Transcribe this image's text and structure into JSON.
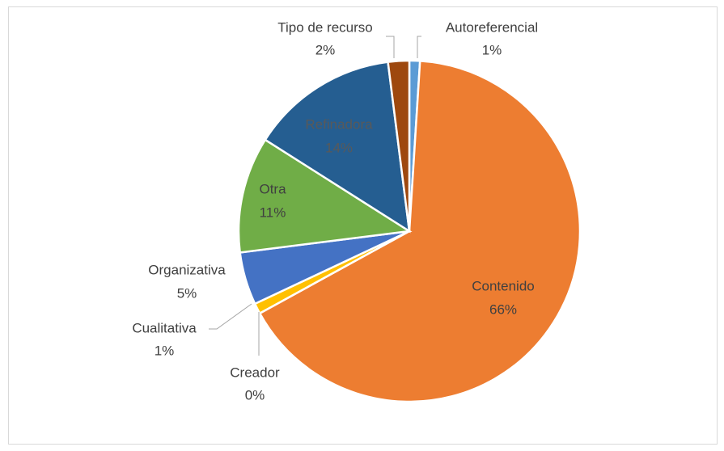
{
  "chart_data": {
    "type": "pie",
    "categories": [
      "Autoreferencial",
      "Contenido",
      "Creador",
      "Cualitativa",
      "Organizativa",
      "Otra",
      "Refinadora",
      "Tipo de recurso"
    ],
    "values": [
      1,
      66,
      0,
      1,
      5,
      11,
      14,
      2
    ],
    "value_labels": [
      "1%",
      "66%",
      "0%",
      "1%",
      "5%",
      "11%",
      "14%",
      "2%"
    ],
    "colors": [
      "#5b9bd5",
      "#ed7d31",
      "#a5a5a5",
      "#ffc000",
      "#4472c4",
      "#70ad47",
      "#255e91",
      "#9e480e"
    ]
  }
}
